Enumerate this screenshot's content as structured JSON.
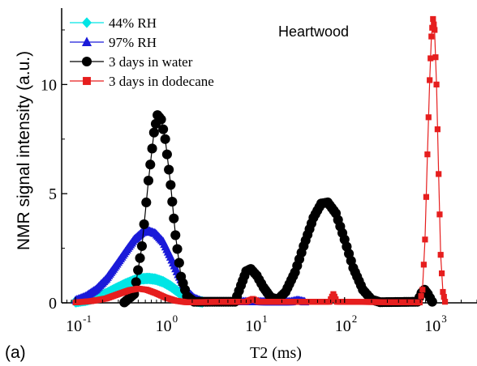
{
  "chart_data": {
    "type": "line",
    "panel_label": "(a)",
    "annotation": "Heartwood",
    "xlabel": "T2 (ms)",
    "ylabel": "NMR signal intensity (a.u.)",
    "x_scale": "log",
    "xlim": [
      0.07,
      3000
    ],
    "ylim": [
      0,
      13.5
    ],
    "x_ticks": [
      {
        "value": 0.1,
        "base": "10",
        "exp": "-1"
      },
      {
        "value": 1,
        "base": "10",
        "exp": "0"
      },
      {
        "value": 10,
        "base": "10",
        "exp": "1"
      },
      {
        "value": 100,
        "base": "10",
        "exp": "2"
      },
      {
        "value": 1000,
        "base": "10",
        "exp": "3"
      }
    ],
    "y_ticks": [
      {
        "value": 0,
        "label": "0"
      },
      {
        "value": 5,
        "label": "5"
      },
      {
        "value": 10,
        "label": "10"
      }
    ],
    "grid": false,
    "legend_position": "top-left",
    "series": [
      {
        "name": "44% RH",
        "color": "#00e5e5",
        "marker": "diamond",
        "points": [
          [
            0.1,
            0.05
          ],
          [
            0.13,
            0.12
          ],
          [
            0.17,
            0.24
          ],
          [
            0.22,
            0.42
          ],
          [
            0.28,
            0.64
          ],
          [
            0.36,
            0.86
          ],
          [
            0.45,
            1.02
          ],
          [
            0.55,
            1.1
          ],
          [
            0.65,
            1.12
          ],
          [
            0.78,
            1.08
          ],
          [
            0.95,
            0.96
          ],
          [
            1.15,
            0.76
          ],
          [
            1.4,
            0.5
          ],
          [
            1.7,
            0.26
          ],
          [
            2.1,
            0.1
          ],
          [
            2.6,
            0.04
          ]
        ]
      },
      {
        "name": "97% RH",
        "color": "#1a1ad9",
        "marker": "triangle",
        "points": [
          [
            0.1,
            0.12
          ],
          [
            0.13,
            0.3
          ],
          [
            0.17,
            0.62
          ],
          [
            0.22,
            1.1
          ],
          [
            0.28,
            1.7
          ],
          [
            0.36,
            2.35
          ],
          [
            0.45,
            2.9
          ],
          [
            0.55,
            3.22
          ],
          [
            0.65,
            3.3
          ],
          [
            0.78,
            3.18
          ],
          [
            0.95,
            2.8
          ],
          [
            1.15,
            2.1
          ],
          [
            1.4,
            1.3
          ],
          [
            1.7,
            0.6
          ],
          [
            2.1,
            0.22
          ],
          [
            2.6,
            0.06
          ],
          [
            25,
            0.05
          ],
          [
            30,
            0.12
          ],
          [
            36,
            0.05
          ]
        ]
      },
      {
        "name": "3 days in water",
        "color": "#000000",
        "marker": "circle",
        "points": [
          [
            0.35,
            0.02
          ],
          [
            0.45,
            0.4
          ],
          [
            0.55,
            2.6
          ],
          [
            0.65,
            5.6
          ],
          [
            0.75,
            7.8
          ],
          [
            0.82,
            8.6
          ],
          [
            0.9,
            8.4
          ],
          [
            1.0,
            7.5
          ],
          [
            1.15,
            5.4
          ],
          [
            1.3,
            3.1
          ],
          [
            1.5,
            1.2
          ],
          [
            1.75,
            0.3
          ],
          [
            2.1,
            0.05
          ],
          [
            6.0,
            0.05
          ],
          [
            7.0,
            0.8
          ],
          [
            8.0,
            1.45
          ],
          [
            9.0,
            1.55
          ],
          [
            10.5,
            1.25
          ],
          [
            12.5,
            0.7
          ],
          [
            15.0,
            0.25
          ],
          [
            18.0,
            0.15
          ],
          [
            22.0,
            0.5
          ],
          [
            28.0,
            1.4
          ],
          [
            35.0,
            2.6
          ],
          [
            45.0,
            3.9
          ],
          [
            55.0,
            4.55
          ],
          [
            65.0,
            4.6
          ],
          [
            80.0,
            4.1
          ],
          [
            100.0,
            2.9
          ],
          [
            125.0,
            1.6
          ],
          [
            160.0,
            0.6
          ],
          [
            200.0,
            0.15
          ],
          [
            250.0,
            0.03
          ],
          [
            650.0,
            0.05
          ],
          [
            720.0,
            0.45
          ],
          [
            780.0,
            0.6
          ],
          [
            850.0,
            0.4
          ],
          [
            950.0,
            0.05
          ]
        ]
      },
      {
        "name": "3 days in dodecane",
        "color": "#e61e1e",
        "marker": "square",
        "points": [
          [
            0.1,
            0.02
          ],
          [
            0.15,
            0.08
          ],
          [
            0.22,
            0.2
          ],
          [
            0.3,
            0.4
          ],
          [
            0.4,
            0.58
          ],
          [
            0.5,
            0.65
          ],
          [
            0.62,
            0.6
          ],
          [
            0.78,
            0.45
          ],
          [
            1.0,
            0.25
          ],
          [
            1.3,
            0.1
          ],
          [
            1.7,
            0.03
          ],
          [
            8.0,
            0.05
          ],
          [
            9.5,
            0.18
          ],
          [
            11.0,
            0.05
          ],
          [
            68.0,
            0.05
          ],
          [
            75.0,
            0.4
          ],
          [
            82.0,
            0.05
          ],
          [
            690.0,
            0.02
          ],
          [
            740.0,
            0.6
          ],
          [
            790.0,
            2.9
          ],
          [
            840.0,
            6.8
          ],
          [
            890.0,
            10.2
          ],
          [
            930.0,
            12.2
          ],
          [
            970.0,
            13.0
          ],
          [
            1010.0,
            12.5
          ],
          [
            1060.0,
            10.0
          ],
          [
            1120.0,
            5.9
          ],
          [
            1180.0,
            2.2
          ],
          [
            1250.0,
            0.5
          ],
          [
            1320.0,
            0.05
          ]
        ]
      }
    ]
  }
}
